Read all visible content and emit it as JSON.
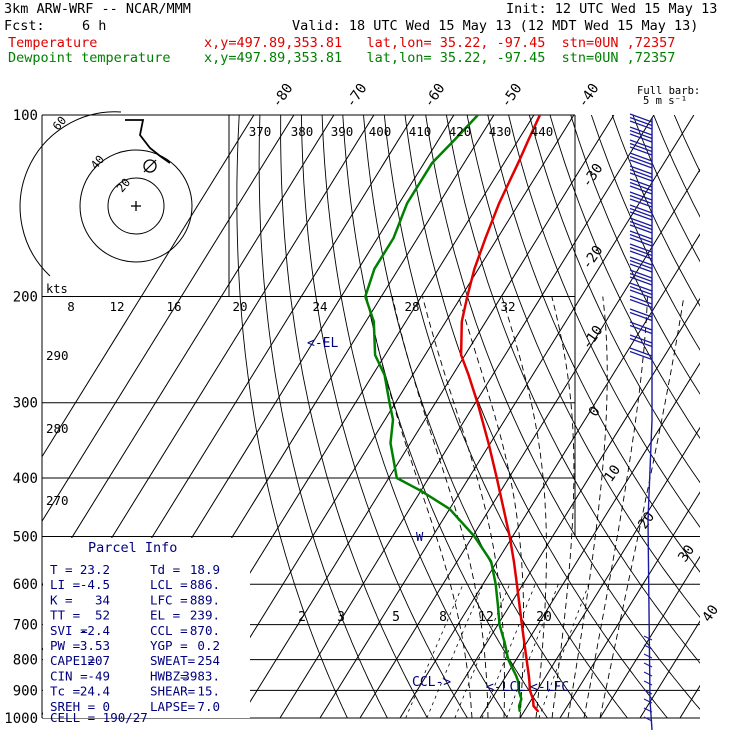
{
  "header": {
    "model": "3km ARW-WRF -- NCAR/MMM",
    "init": "Init: 12 UTC Wed 15 May 13",
    "fcst_label": "Fcst:",
    "fcst_value": "6 h",
    "valid": "Valid: 18 UTC Wed 15 May 13 (12 MDT Wed 15 May 13)",
    "temp_label": "Temperature",
    "temp_info": "x,y=497.89,353.81   lat,lon= 35.22, -97.45  stn=0UN ,72357",
    "dew_label": "Dewpoint temperature",
    "dew_info": "x,y=497.89,353.81   lat,lon= 35.22, -97.45  stn=0UN ,72357"
  },
  "colors": {
    "temperature": "#e00000",
    "dewpoint": "#008000",
    "parcel_text": "#000080",
    "wind_barb": "#1a1aa0"
  },
  "hodograph": {
    "kts_label": "kts",
    "ring_labels": [
      "8",
      "12",
      "16",
      "20",
      "24",
      "28",
      "32"
    ],
    "circle_labels": [
      "20",
      "40",
      "60"
    ]
  },
  "thermo_labels": {
    "theta_top": [
      "370",
      "380",
      "390",
      "400",
      "410",
      "420",
      "430",
      "440"
    ],
    "theta_left": [
      "290",
      "280",
      "270"
    ],
    "mixing_ratio": [
      "2",
      "3",
      "5",
      "8",
      "12",
      "20"
    ],
    "markers": {
      "el": "<-EL",
      "lcl": "<-LCL",
      "lfc": "<-LFC",
      "ccl": "CCL->",
      "w": "W"
    }
  },
  "wind_barb_legend": {
    "line1": "Full barb:",
    "line2": "5 m s⁻¹"
  },
  "parcel_info": {
    "title": "Parcel Info",
    "rows": [
      [
        "T  =",
        "23.2",
        "Td =",
        "18.9"
      ],
      [
        "LI =",
        "-4.5",
        "LCL =",
        "886."
      ],
      [
        "K  =",
        "34",
        "LFC =",
        "889."
      ],
      [
        "TT =",
        "52",
        "EL  =",
        "239."
      ],
      [
        "SVI =",
        "-2.4",
        "CCL =",
        "870."
      ],
      [
        "PW  =",
        "3.53",
        "YGP =",
        "0.2"
      ],
      [
        "CAPE =",
        "1207",
        "SWEAT=",
        "254"
      ],
      [
        "CIN =",
        "-49",
        "HWBZ=",
        "3983."
      ],
      [
        "Tc  =",
        "24.4",
        "SHEAR=",
        "15."
      ],
      [
        "SREH =",
        "0",
        "LAPSE=",
        "7.0"
      ]
    ],
    "cell": "CELL = 190/27"
  },
  "chart_data": {
    "type": "line",
    "title": "",
    "xlabel": "",
    "ylabel": "",
    "y_axis_scale": "log-pressure (hPa), inverted",
    "ylim": [
      1000,
      100
    ],
    "pressure_ticks": [
      "100",
      "200",
      "300",
      "400",
      "500",
      "600",
      "700",
      "800",
      "900",
      "1000"
    ],
    "isotherm_labels": [
      "-80",
      "-70",
      "-60",
      "-50",
      "-40",
      "-30",
      "-20",
      "-10",
      "0",
      "10",
      "20",
      "30",
      "40"
    ],
    "grid": true,
    "series": [
      {
        "name": "Temperature",
        "color": "#e00000",
        "p": [
          975,
          955,
          930,
          900,
          870,
          850,
          800,
          750,
          700,
          650,
          600,
          550,
          500,
          450,
          400,
          350,
          300,
          270,
          250,
          220,
          200,
          180,
          160,
          140,
          120,
          110,
          100
        ],
        "t": [
          23.5,
          21.5,
          20.3,
          18.2,
          16.7,
          15.6,
          12.6,
          9.4,
          6.0,
          2.4,
          -1.5,
          -5.8,
          -10.7,
          -16.5,
          -23.0,
          -30.5,
          -39.5,
          -46.0,
          -51.0,
          -56.0,
          -58.5,
          -61.0,
          -63.0,
          -65.0,
          -66.5,
          -67.5,
          -68.5
        ]
      },
      {
        "name": "Dewpoint temperature",
        "color": "#008000",
        "p": [
          975,
          955,
          930,
          900,
          870,
          850,
          800,
          750,
          700,
          650,
          600,
          550,
          500,
          450,
          420,
          400,
          350,
          320,
          300,
          270,
          250,
          220,
          200,
          180,
          160,
          140,
          120,
          110,
          100
        ],
        "td": [
          18.9,
          17.9,
          17.4,
          15.4,
          13.9,
          12.4,
          8.0,
          4.5,
          0.4,
          -3.0,
          -6.8,
          -11.5,
          -19.5,
          -30.0,
          -40.0,
          -48.0,
          -55.0,
          -58.0,
          -61.5,
          -67.0,
          -72.5,
          -78.0,
          -84.0,
          -86.0,
          -86.0,
          -88.0,
          -88.0,
          -86.0,
          -84.0
        ]
      }
    ]
  }
}
